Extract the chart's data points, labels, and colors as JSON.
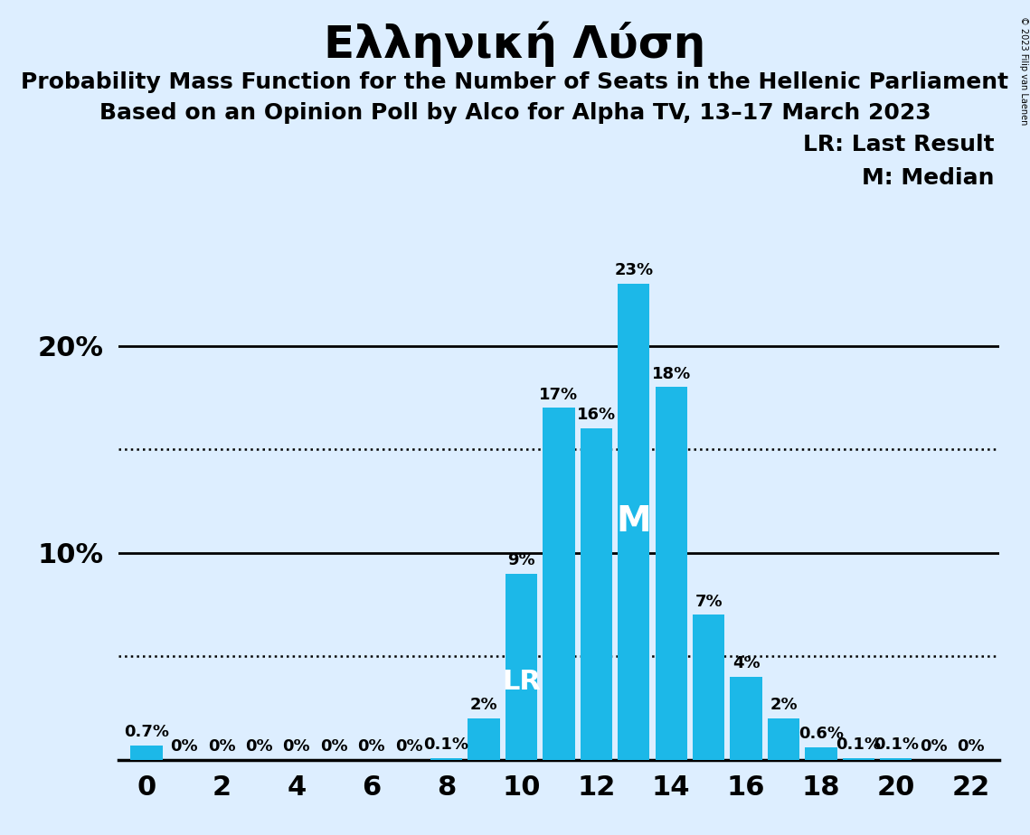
{
  "title": "Ελληνική Λύση",
  "subtitle1": "Probability Mass Function for the Number of Seats in the Hellenic Parliament",
  "subtitle2": "Based on an Opinion Poll by Alco for Alpha TV, 13–17 March 2023",
  "copyright": "© 2023 Filip van Laenen",
  "legend_lr": "LR: Last Result",
  "legend_m": "M: Median",
  "seats": [
    0,
    1,
    2,
    3,
    4,
    5,
    6,
    7,
    8,
    9,
    10,
    11,
    12,
    13,
    14,
    15,
    16,
    17,
    18,
    19,
    20,
    21,
    22
  ],
  "probabilities": [
    0.7,
    0,
    0,
    0,
    0,
    0,
    0,
    0,
    0.1,
    2,
    9,
    17,
    16,
    23,
    18,
    7,
    4,
    2,
    0.6,
    0.1,
    0.1,
    0,
    0
  ],
  "bar_labels": [
    "0.7%",
    "0%",
    "0%",
    "0%",
    "0%",
    "0%",
    "0%",
    "0%",
    "0.1%",
    "2%",
    "9%",
    "17%",
    "16%",
    "23%",
    "18%",
    "7%",
    "4%",
    "2%",
    "0.6%",
    "0.1%",
    "0.1%",
    "0%",
    "0%"
  ],
  "bar_color": "#1cb8e8",
  "background_color": "#ddeeff",
  "lr_seat": 10,
  "median_seat": 13,
  "dotted_line_values": [
    5,
    15
  ],
  "ylim": [
    0,
    25
  ],
  "title_fontsize": 36,
  "subtitle_fontsize": 18,
  "bar_label_fontsize": 13,
  "axis_label_fontsize": 22,
  "legend_fontsize": 18,
  "lr_label_fontsize": 22,
  "m_label_fontsize": 28
}
